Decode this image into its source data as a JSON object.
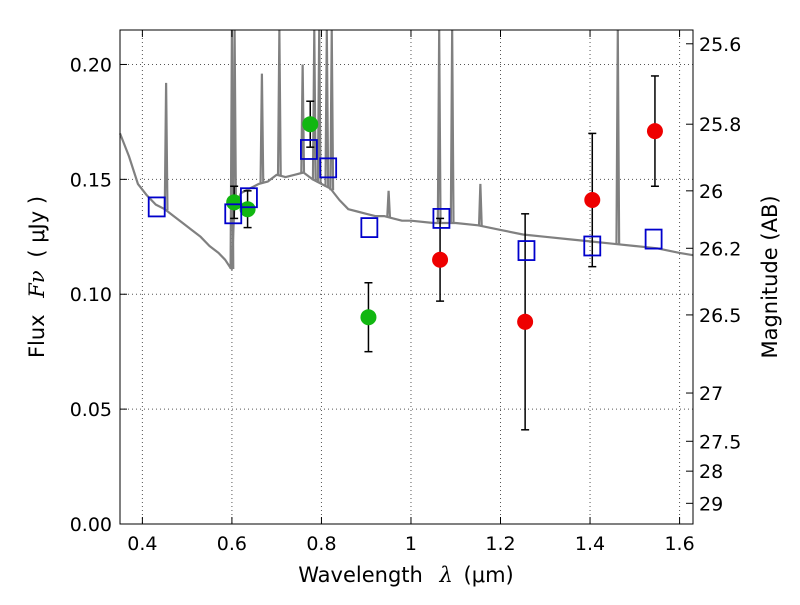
{
  "chart_data": {
    "type": "scatter",
    "title": "",
    "xlabel_main": "Wavelength",
    "xlabel_symbol": "λ",
    "xlabel_unit": "(μm)",
    "ylabel_main": "Flux",
    "ylabel_symbol": "Fν",
    "ylabel_unit": "( μJy )",
    "y2label": "Magnitude (AB)",
    "xlim": [
      0.35,
      1.63
    ],
    "ylim": [
      0.0,
      0.215
    ],
    "grid": true,
    "legend": "none",
    "x_ticks": [
      0.4,
      0.6,
      0.8,
      1.0,
      1.2,
      1.4,
      1.6
    ],
    "x_tick_labels": [
      "0.4",
      "0.6",
      "0.8",
      "1",
      "1.2",
      "1.4",
      "1.6"
    ],
    "y_ticks": [
      0.0,
      0.05,
      0.1,
      0.15,
      0.2
    ],
    "y_tick_labels": [
      "0.00",
      "0.05",
      "0.10",
      "0.15",
      "0.20"
    ],
    "y2_ticks": [
      {
        "label": "25.6",
        "flux": 0.209
      },
      {
        "label": "25.8",
        "flux": 0.174
      },
      {
        "label": "26",
        "flux": 0.145
      },
      {
        "label": "26.2",
        "flux": 0.12
      },
      {
        "label": "26.5",
        "flux": 0.091
      },
      {
        "label": "27",
        "flux": 0.057
      },
      {
        "label": "27.5",
        "flux": 0.036
      },
      {
        "label": "28",
        "flux": 0.023
      },
      {
        "label": "29",
        "flux": 0.009
      }
    ],
    "colors": {
      "green": "#11b711",
      "red": "#ee0000",
      "blue": "#0000cc",
      "model": "#808080",
      "grid": "#555555"
    },
    "series": [
      {
        "marker": "green-circle",
        "points": [
          {
            "x": 0.605,
            "y": 0.14,
            "yerr": 0.007
          },
          {
            "x": 0.635,
            "y": 0.137,
            "yerr": 0.008
          },
          {
            "x": 0.775,
            "y": 0.174,
            "yerr": 0.01
          },
          {
            "x": 0.905,
            "y": 0.09,
            "yerr": 0.015
          }
        ]
      },
      {
        "marker": "red-circle",
        "points": [
          {
            "x": 1.065,
            "y": 0.115,
            "yerr": 0.018
          },
          {
            "x": 1.255,
            "y": 0.088,
            "yerr": 0.047
          },
          {
            "x": 1.405,
            "y": 0.141,
            "yerr": 0.029
          },
          {
            "x": 1.545,
            "y": 0.171,
            "yerr": 0.024
          }
        ]
      },
      {
        "marker": "blue-square",
        "points": [
          {
            "x": 0.432,
            "y": 0.138
          },
          {
            "x": 0.603,
            "y": 0.135
          },
          {
            "x": 0.638,
            "y": 0.142
          },
          {
            "x": 0.772,
            "y": 0.163
          },
          {
            "x": 0.815,
            "y": 0.155
          },
          {
            "x": 0.907,
            "y": 0.129
          },
          {
            "x": 1.068,
            "y": 0.133
          },
          {
            "x": 1.258,
            "y": 0.119
          },
          {
            "x": 1.405,
            "y": 0.121
          },
          {
            "x": 1.542,
            "y": 0.124
          }
        ]
      }
    ],
    "model_spectrum": {
      "x": [
        0.35,
        0.37,
        0.39,
        0.41,
        0.43,
        0.45,
        0.47,
        0.49,
        0.51,
        0.53,
        0.55,
        0.57,
        0.585,
        0.595,
        0.6,
        0.605,
        0.62,
        0.64,
        0.66,
        0.68,
        0.7,
        0.72,
        0.74,
        0.76,
        0.78,
        0.8,
        0.82,
        0.84,
        0.86,
        0.88,
        0.9,
        0.92,
        0.94,
        0.96,
        0.98,
        1.0,
        1.05,
        1.1,
        1.15,
        1.2,
        1.25,
        1.3,
        1.35,
        1.4,
        1.45,
        1.5,
        1.55,
        1.6,
        1.63
      ],
      "y": [
        0.17,
        0.16,
        0.148,
        0.143,
        0.139,
        0.137,
        0.134,
        0.131,
        0.128,
        0.125,
        0.121,
        0.118,
        0.115,
        0.112,
        0.111,
        0.137,
        0.144,
        0.146,
        0.148,
        0.149,
        0.152,
        0.151,
        0.152,
        0.153,
        0.15,
        0.148,
        0.146,
        0.141,
        0.137,
        0.136,
        0.135,
        0.134,
        0.134,
        0.133,
        0.132,
        0.132,
        0.131,
        0.131,
        0.13,
        0.128,
        0.126,
        0.125,
        0.124,
        0.123,
        0.122,
        0.121,
        0.12,
        0.118,
        0.117
      ]
    },
    "emission_lines": [
      {
        "x": 0.453,
        "peak": 0.192
      },
      {
        "x": 0.6,
        "peak": 0.215
      },
      {
        "x": 0.606,
        "peak": 0.215
      },
      {
        "x": 0.667,
        "peak": 0.196
      },
      {
        "x": 0.706,
        "peak": 0.215
      },
      {
        "x": 0.758,
        "peak": 0.2
      },
      {
        "x": 0.784,
        "peak": 0.215
      },
      {
        "x": 0.795,
        "peak": 0.215
      },
      {
        "x": 0.812,
        "peak": 0.215
      },
      {
        "x": 0.823,
        "peak": 0.215
      },
      {
        "x": 0.95,
        "peak": 0.145
      },
      {
        "x": 1.063,
        "peak": 0.215
      },
      {
        "x": 1.092,
        "peak": 0.215
      },
      {
        "x": 1.155,
        "peak": 0.148
      },
      {
        "x": 1.462,
        "peak": 0.215
      }
    ]
  }
}
